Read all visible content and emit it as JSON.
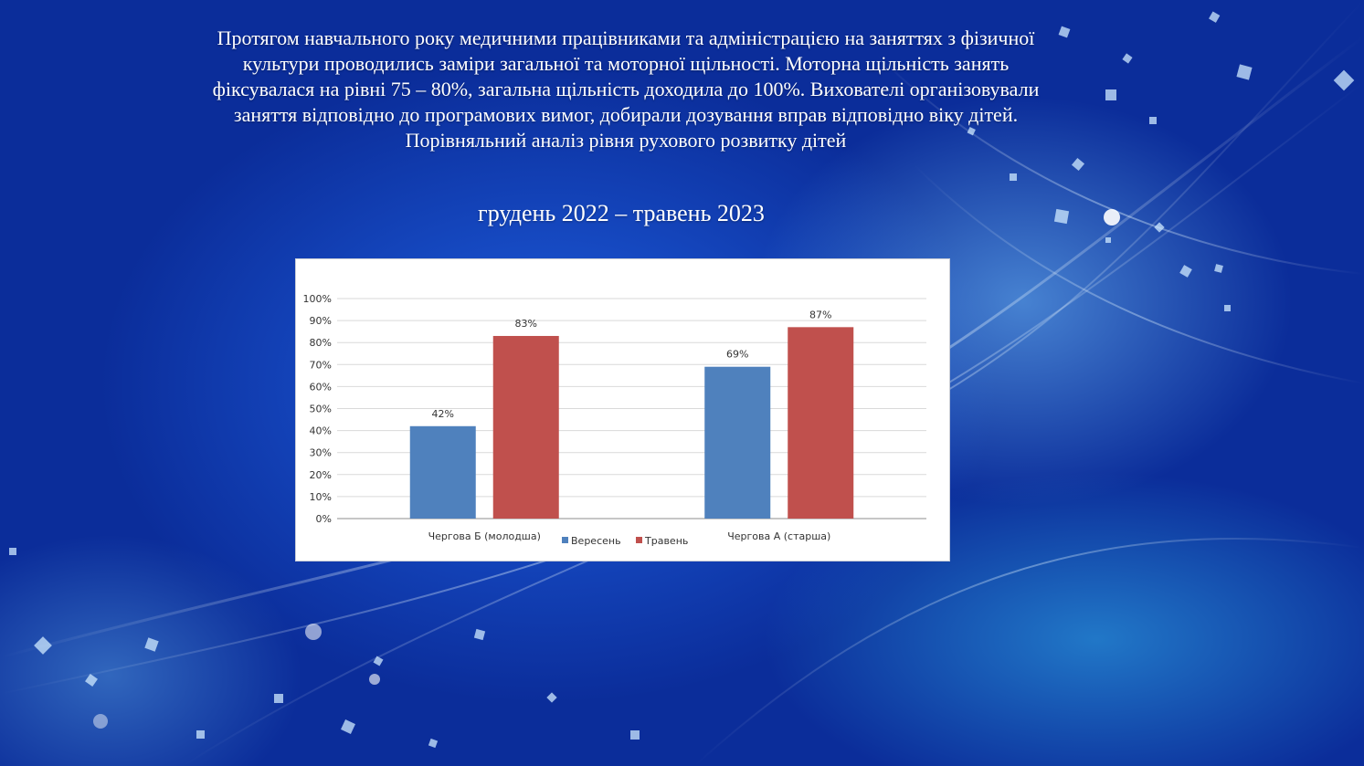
{
  "intro": {
    "lines": [
      "Протягом навчального року медичними працівниками та адміністрацією на заняттях з фізичної",
      "культури проводились заміри загальної та моторної щільності. Моторна щільність занять",
      "фіксувалася на рівні 75 – 80%, загальна щільність доходила до 100%. Вихователі організовували",
      "заняття відповідно до програмових вимог, добирали дозування вправ відповідно віку дітей.",
      "Порівняльний аналіз рівня рухового розвитку дітей"
    ]
  },
  "period": "грудень 2022 – травень 2023",
  "chart_data": {
    "type": "bar",
    "title": "",
    "xlabel": "",
    "ylabel": "",
    "categories": [
      "Чергова Б (молодша)",
      "Чергова А (старша)"
    ],
    "series": [
      {
        "name": "Вересень",
        "values": [
          42,
          69
        ],
        "labels": [
          "42%",
          "69%"
        ],
        "color": "#4f81bd"
      },
      {
        "name": "Травень",
        "values": [
          83,
          87
        ],
        "labels": [
          "83%",
          "87%"
        ],
        "color": "#c0504d"
      }
    ],
    "ylim": [
      0,
      100
    ],
    "yticks": [
      0,
      10,
      20,
      30,
      40,
      50,
      60,
      70,
      80,
      90,
      100
    ],
    "ytick_labels": [
      "0%",
      "10%",
      "20%",
      "30%",
      "40%",
      "50%",
      "60%",
      "70%",
      "80%",
      "90%",
      "100%"
    ],
    "grid": true,
    "legend_position": "bottom"
  },
  "colors": {
    "background": "#0a2f9e",
    "series_1": "#4f81bd",
    "series_2": "#c0504d",
    "gridline": "#d9d9d9"
  }
}
